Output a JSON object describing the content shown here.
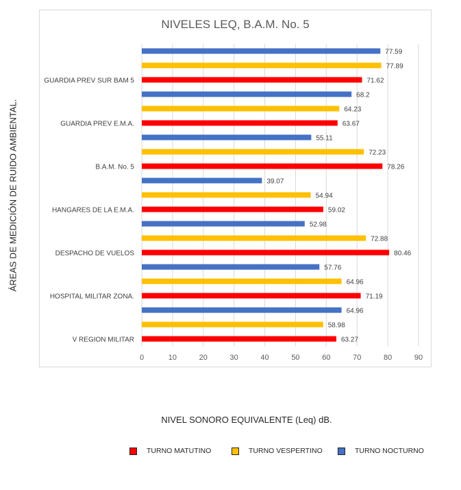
{
  "chart_data": {
    "type": "bar",
    "orientation": "horizontal",
    "title": "NIVELES LEQ, B.A.M. No. 5",
    "xlabel": "NIVEL SONORO EQUIVALENTE (Leq) dB.",
    "ylabel": "ÁREAS DE MEDICIÓN DE RUIDO AMBIENTAL.",
    "xlim": [
      0,
      90
    ],
    "xticks": [
      "0",
      "10",
      "20",
      "30",
      "40",
      "50",
      "60",
      "70",
      "80",
      "90"
    ],
    "grid": true,
    "legend_position": "bottom",
    "categories": [
      "V REGION MILITAR",
      "HOSPITAL MILITAR ZONA.",
      "DESPACHO DE VUELOS",
      "HANGARES DE LA E.M.A.",
      "B.A.M. No. 5",
      "GUARDIA PREV E.M.A.",
      "GUARDIA PREV SUR BAM 5"
    ],
    "series": [
      {
        "name": "TURNO MATUTINO",
        "color": "#ff0000",
        "values": [
          63.27,
          71.19,
          80.46,
          59.02,
          78.26,
          63.67,
          71.62
        ]
      },
      {
        "name": "TURNO VESPERTINO",
        "color": "#ffc000",
        "values": [
          58.98,
          64.96,
          72.88,
          54.94,
          72.23,
          64.23,
          77.89
        ]
      },
      {
        "name": "TURNO NOCTURNO",
        "color": "#4472c4",
        "values": [
          64.96,
          57.76,
          52.98,
          39.07,
          55.11,
          68.2,
          77.59
        ]
      }
    ],
    "data_labels": [
      [
        "63.27",
        "71.19",
        "80.46",
        "59.02",
        "78.26",
        "63.67",
        "71.62"
      ],
      [
        "58.98",
        "64.96",
        "72.88",
        "54.94",
        "72.23",
        "64.23",
        "77.89"
      ],
      [
        "64.96",
        "57.76",
        "52.98",
        "39.07",
        "55.11",
        "68.2",
        "77.59"
      ]
    ]
  }
}
